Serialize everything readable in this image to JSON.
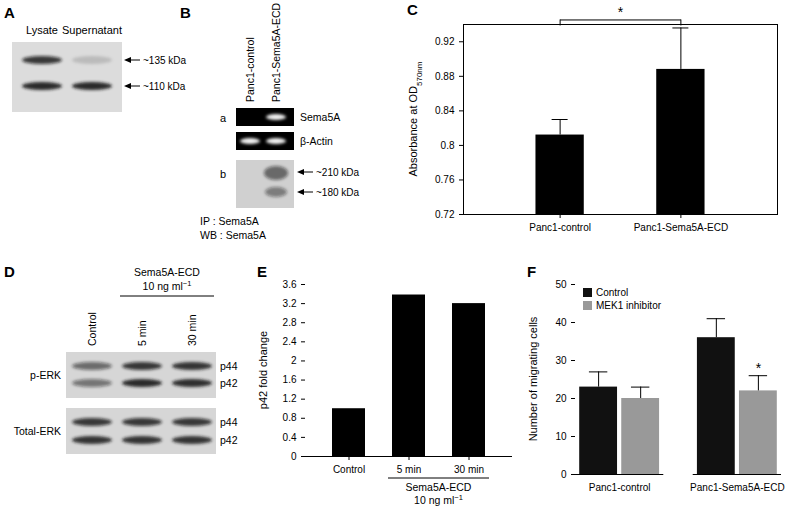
{
  "panels": [
    {
      "panel": "A",
      "lanes": [
        "Lysate",
        "Supernatant"
      ],
      "bands": [
        "~135 kDa",
        "~110 kDa"
      ]
    },
    {
      "panel": "B",
      "lanes": [
        "Panc1-control",
        "Panc1-Sema5A-ECD"
      ],
      "subpanels": [
        {
          "label": "a",
          "rows": [
            "Sema5A",
            "β-Actin"
          ]
        },
        {
          "label": "b",
          "bands": [
            "~210 kDa",
            "~180 kDa"
          ],
          "notes": [
            "IP : Sema5A",
            "WB : Sema5A"
          ]
        }
      ]
    },
    {
      "panel": "D",
      "header": [
        "Sema5A-ECD",
        "10 ng ml"
      ],
      "header_superscript": "−1",
      "lanes": [
        "Control",
        "5 min",
        "30 min"
      ],
      "rows": [
        {
          "label": "p-ERK",
          "bands": [
            "p44",
            "p42"
          ]
        },
        {
          "label": "Total-ERK",
          "bands": [
            "p44",
            "p42"
          ]
        }
      ]
    }
  ],
  "chart_data": [
    {
      "panel": "C",
      "type": "bar",
      "categories": [
        "Panc1-control",
        "Panc1-Sema5A-ECD"
      ],
      "values": [
        0.812,
        0.888
      ],
      "errors": [
        0.018,
        0.048
      ],
      "color": "#000000",
      "ylabel": "Absorbance at OD",
      "ylabel_subscript": "570nm",
      "ylim": [
        0.72,
        0.94
      ],
      "yticks": [
        0.72,
        0.76,
        0.8,
        0.84,
        0.88,
        0.92
      ],
      "annotations": [
        {
          "text": "*",
          "between": [
            "Panc1-control",
            "Panc1-Sema5A-ECD"
          ]
        }
      ]
    },
    {
      "panel": "E",
      "type": "bar",
      "categories": [
        "Control",
        "5 min",
        "30 min"
      ],
      "values": [
        1.0,
        3.38,
        3.2
      ],
      "color": "#000000",
      "ylabel": "p42 fold change",
      "ylim": [
        0,
        3.6
      ],
      "yticks": [
        0,
        0.4,
        0.8,
        1.2,
        1.6,
        2,
        2.4,
        2.8,
        3.2,
        3.6
      ],
      "group_label": {
        "lines": [
          "Sema5A-ECD",
          "10 ng ml"
        ],
        "superscript": "−1",
        "categories": [
          "5 min",
          "30 min"
        ]
      }
    },
    {
      "panel": "F",
      "type": "grouped_bar",
      "categories": [
        "Panc1-control",
        "Panc1-Sema5A-ECD"
      ],
      "series": [
        {
          "name": "Control",
          "color": "#111111",
          "values": [
            23,
            36
          ],
          "errors": [
            4,
            5
          ]
        },
        {
          "name": "MEK1 inhibitor",
          "color": "#999999",
          "values": [
            20,
            22
          ],
          "errors": [
            3,
            4
          ]
        }
      ],
      "ylabel": "Number of migrating cells",
      "ylim": [
        0,
        50
      ],
      "yticks": [
        0,
        10,
        20,
        30,
        40,
        50
      ],
      "legend": "top-left",
      "annotations": [
        {
          "text": "*",
          "category": "Panc1-Sema5A-ECD",
          "series": "MEK1 inhibitor"
        }
      ]
    }
  ]
}
